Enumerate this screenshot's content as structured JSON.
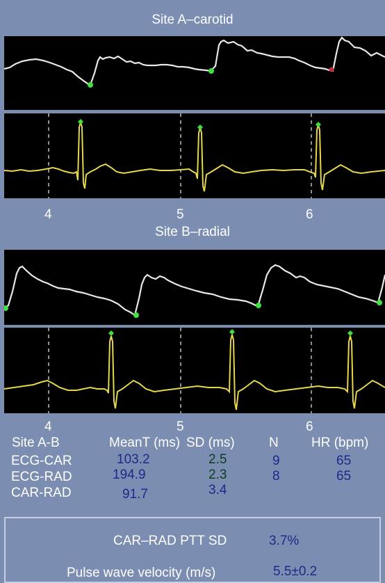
{
  "site_a": {
    "title": "Site A–carotid",
    "ticks": [
      "4",
      "5",
      "6"
    ]
  },
  "site_b": {
    "title": "Site B–radial",
    "ticks": [
      "4",
      "5",
      "6"
    ]
  },
  "table": {
    "headers": [
      "Site A-B",
      "MeanT (ms)",
      "SD (ms)",
      "N",
      "HR (bpm)"
    ],
    "rows": [
      {
        "label": "ECG-CAR",
        "mean": "103.2",
        "sd": "2.5",
        "n": "9",
        "hr": "65"
      },
      {
        "label": "ECG-RAD",
        "mean": "194.9",
        "sd": "2.3",
        "n": "8",
        "hr": "65"
      },
      {
        "label": "CAR-RAD",
        "mean": "91.7",
        "sd": "3.4",
        "n": "",
        "hr": ""
      }
    ]
  },
  "results": {
    "ptt_sd_label": "CAR–RAD PTT SD",
    "ptt_sd_value": "3.7%",
    "pwv_label": "Pulse wave velocity (m/s)",
    "pwv_value": "5.5±0.2"
  },
  "colors": {
    "background": "#7b8db1",
    "pressure_trace": "#e8e8e8",
    "ecg_trace": "#e6d84a",
    "marker": "#3fe03f",
    "marker_alt": "#c0303a",
    "value_text": "#1e2a8a",
    "sd_text": "#0c3d1c"
  }
}
